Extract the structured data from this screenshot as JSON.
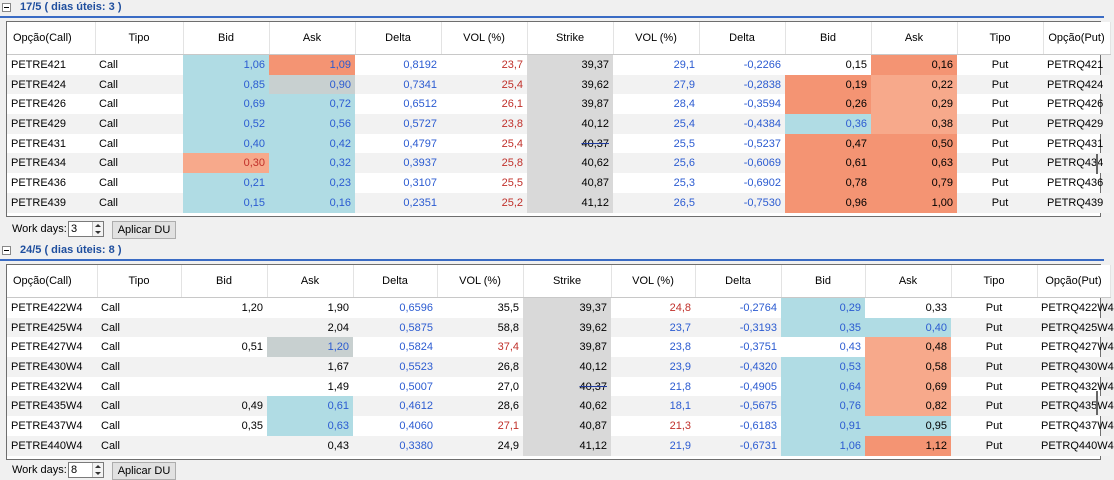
{
  "colors": {
    "cold": "#b0dce4",
    "cold_strong": "#9fd3de",
    "warm": "#f7a98b",
    "warm_strong": "#f49473",
    "grey": "#c8d0d0"
  },
  "columns": [
    "Opção(Call)",
    "Tipo",
    "Bid",
    "Ask",
    "Delta",
    "VOL (%)",
    "Strike",
    "VOL (%)",
    "Delta",
    "Bid",
    "Ask",
    "Tipo",
    "Opção(Put)"
  ],
  "sections": [
    {
      "title": "17/5 ( dias úteis: 3 )",
      "work_days_label": "Work days:",
      "work_days_value": "3",
      "apply_label": "Aplicar DU",
      "rows": [
        [
          "PETRE421",
          "Call",
          "1,06",
          "1,09",
          "0,8192",
          "23,7",
          "39,37",
          "29,1",
          "-0,2266",
          "0,15",
          "0,16",
          "Put",
          "PETRQ421"
        ],
        [
          "PETRE424",
          "Call",
          "0,85",
          "0,90",
          "0,7341",
          "25,4",
          "39,62",
          "27,9",
          "-0,2838",
          "0,19",
          "0,22",
          "Put",
          "PETRQ424"
        ],
        [
          "PETRE426",
          "Call",
          "0,69",
          "0,72",
          "0,6512",
          "26,1",
          "39,87",
          "28,4",
          "-0,3594",
          "0,26",
          "0,29",
          "Put",
          "PETRQ426"
        ],
        [
          "PETRE429",
          "Call",
          "0,52",
          "0,56",
          "0,5727",
          "23,8",
          "40,12",
          "25,4",
          "-0,4384",
          "0,36",
          "0,38",
          "Put",
          "PETRQ429"
        ],
        [
          "PETRE431",
          "Call",
          "0,40",
          "0,42",
          "0,4797",
          "25,4",
          "40,37",
          "25,5",
          "-0,5237",
          "0,47",
          "0,50",
          "Put",
          "PETRQ431"
        ],
        [
          "PETRE434",
          "Call",
          "0,30",
          "0,32",
          "0,3937",
          "25,8",
          "40,62",
          "25,6",
          "-0,6069",
          "0,61",
          "0,63",
          "Put",
          "PETRQ434"
        ],
        [
          "PETRE436",
          "Call",
          "0,21",
          "0,23",
          "0,3107",
          "25,5",
          "40,87",
          "25,3",
          "-0,6902",
          "0,78",
          "0,79",
          "Put",
          "PETRQ436"
        ],
        [
          "PETRE439",
          "Call",
          "0,15",
          "0,16",
          "0,2351",
          "25,2",
          "41,12",
          "26,5",
          "-0,7530",
          "0,96",
          "1,00",
          "Put",
          "PETRQ439"
        ]
      ]
    },
    {
      "title": "24/5 ( dias úteis: 8 )",
      "work_days_label": "Work days:",
      "work_days_value": "8",
      "apply_label": "Aplicar DU",
      "rows": [
        [
          "PETRE422W4",
          "Call",
          "1,20",
          "1,90",
          "0,6596",
          "35,5",
          "39,37",
          "24,8",
          "-0,2764",
          "0,29",
          "0,33",
          "Put",
          "PETRQ422W4"
        ],
        [
          "PETRE425W4",
          "Call",
          "",
          "2,04",
          "0,5875",
          "58,8",
          "39,62",
          "23,7",
          "-0,3193",
          "0,35",
          "0,40",
          "Put",
          "PETRQ425W4"
        ],
        [
          "PETRE427W4",
          "Call",
          "0,51",
          "1,20",
          "0,5824",
          "37,4",
          "39,87",
          "23,8",
          "-0,3751",
          "0,43",
          "0,48",
          "Put",
          "PETRQ427W4"
        ],
        [
          "PETRE430W4",
          "Call",
          "",
          "1,67",
          "0,5523",
          "26,8",
          "40,12",
          "23,9",
          "-0,4320",
          "0,53",
          "0,58",
          "Put",
          "PETRQ430W4"
        ],
        [
          "PETRE432W4",
          "Call",
          "",
          "1,49",
          "0,5007",
          "27,0",
          "40,37",
          "21,8",
          "-0,4905",
          "0,64",
          "0,69",
          "Put",
          "PETRQ432W4"
        ],
        [
          "PETRE435W4",
          "Call",
          "0,49",
          "0,61",
          "0,4612",
          "28,6",
          "40,62",
          "18,1",
          "-0,5675",
          "0,76",
          "0,82",
          "Put",
          "PETRQ435W4"
        ],
        [
          "PETRE437W4",
          "Call",
          "0,35",
          "0,63",
          "0,4060",
          "27,1",
          "40,87",
          "21,3",
          "-0,6183",
          "0,91",
          "0,95",
          "Put",
          "PETRQ437W4"
        ],
        [
          "PETRE440W4",
          "Call",
          "",
          "0,43",
          "0,3380",
          "24,9",
          "41,12",
          "21,9",
          "-0,6731",
          "1,06",
          "1,12",
          "Put",
          "PETRQ440W4"
        ]
      ]
    }
  ]
}
